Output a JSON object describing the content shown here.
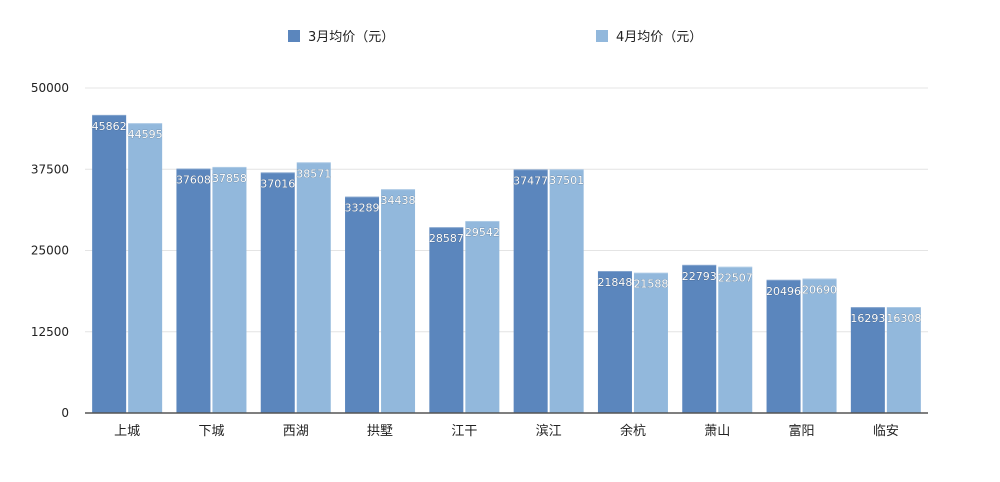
{
  "chart_data": {
    "type": "bar",
    "title": "",
    "xlabel": "",
    "ylabel": "",
    "ylim": [
      0,
      50000
    ],
    "y_ticks": [
      0,
      12500,
      25000,
      37500,
      50000
    ],
    "grid": true,
    "legend_position": "top",
    "categories": [
      "上城",
      "下城",
      "西湖",
      "拱墅",
      "江干",
      "滨江",
      "余杭",
      "萧山",
      "富阳",
      "临安"
    ],
    "series": [
      {
        "name": "3月均价（元）",
        "color": "#5b86bd",
        "values": [
          45862,
          37608,
          37016,
          33289,
          28587,
          37477,
          21848,
          22793,
          20496,
          16293
        ]
      },
      {
        "name": "4月均价（元）",
        "color": "#92b8dc",
        "values": [
          44595,
          37858,
          38571,
          34438,
          29542,
          37501,
          21588,
          22507,
          20690,
          16308
        ]
      }
    ]
  }
}
